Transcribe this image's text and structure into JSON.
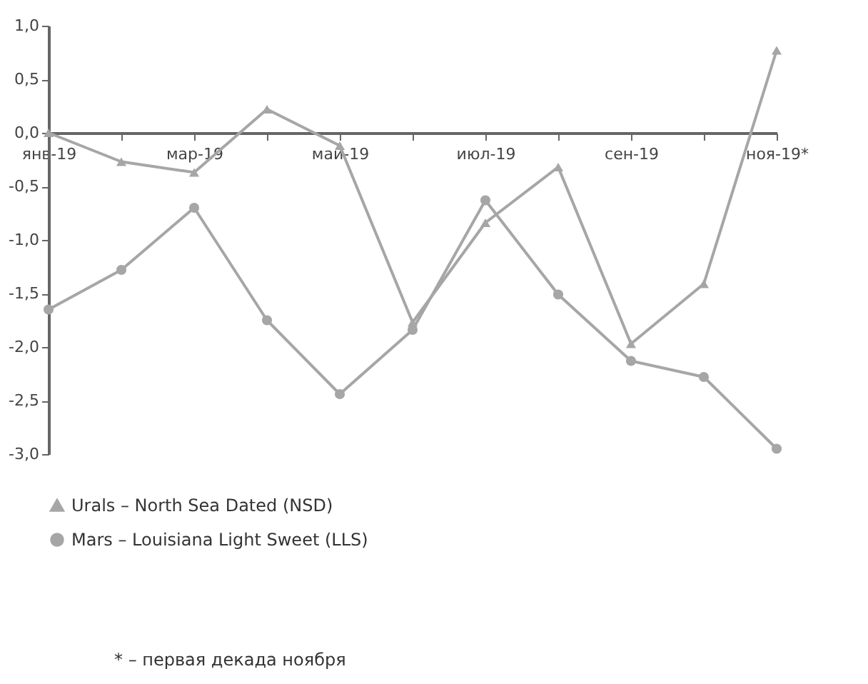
{
  "chart_data": {
    "type": "line",
    "categories": [
      "янв-19",
      null,
      "мар-19",
      null,
      "май-19",
      null,
      "июл-19",
      null,
      "сен-19",
      null,
      "ноя-19*"
    ],
    "series": [
      {
        "name": "Urals – North Sea Dated (NSD)",
        "color": "#a6a6a6",
        "marker": "triangle",
        "values": [
          0,
          -0.27,
          -0.37,
          0.22,
          -0.12,
          -1.77,
          -0.84,
          -0.32,
          -1.97,
          -1.41,
          0.77
        ]
      },
      {
        "name": "Mars – Louisiana Light Sweet (LLS)",
        "color": "#a6a6a6",
        "marker": "circle",
        "values": [
          -1.65,
          -1.28,
          -0.7,
          -1.75,
          -2.44,
          -1.84,
          -0.63,
          -1.51,
          -2.13,
          -2.28,
          -2.95
        ]
      }
    ],
    "ylim": [
      -3,
      1
    ],
    "yticks": [
      {
        "value": 1,
        "label": "1,0"
      },
      {
        "value": 0.5,
        "label": "0,5"
      },
      {
        "value": 0,
        "label": "0,0"
      },
      {
        "value": -0.5,
        "label": "-0,5"
      },
      {
        "value": -1,
        "label": "-1,0"
      },
      {
        "value": -1.5,
        "label": "-1,5"
      },
      {
        "value": -2,
        "label": "-2,0"
      },
      {
        "value": -2.5,
        "label": "-2,5"
      },
      {
        "value": -3,
        "label": "-3,0"
      }
    ],
    "grid": false,
    "legend": "bottom",
    "line_style": "solid",
    "annotations": [
      "* – первая декада ноября"
    ]
  }
}
